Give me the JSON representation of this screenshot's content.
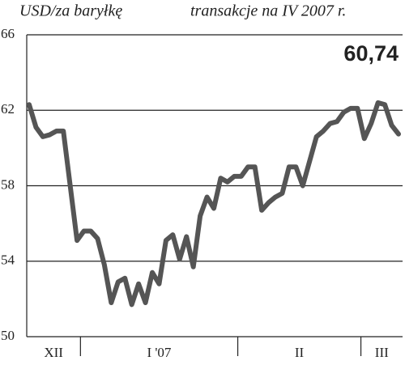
{
  "chart_data": {
    "type": "line",
    "title": "USD/za baryłkę",
    "subtitle": "transakcje na IV 2007 r.",
    "annotation": "60,74",
    "color": "#555555",
    "ylim": [
      50,
      66
    ],
    "yticks": [
      50,
      54,
      58,
      62,
      66
    ],
    "grid": true,
    "months": [
      {
        "label": "XII",
        "values": [
          62.3,
          61.1,
          60.6,
          60.7,
          60.9,
          60.9,
          58.0,
          55.1
        ]
      },
      {
        "label": "I '07",
        "values": [
          55.6,
          55.6,
          55.2,
          53.8,
          51.8,
          52.9,
          53.1,
          51.7,
          52.8,
          51.8,
          53.4,
          52.8,
          55.1,
          55.4,
          54.1,
          55.3,
          53.7,
          56.4,
          57.4,
          56.8,
          58.4,
          58.2,
          58.5
        ]
      },
      {
        "label": "II",
        "values": [
          58.5,
          59.0,
          59.0,
          56.7,
          57.1,
          57.4,
          57.6,
          59.0,
          59.0,
          58.0,
          59.3,
          60.6,
          60.9,
          61.3,
          61.4,
          61.9,
          62.1,
          62.1
        ]
      },
      {
        "label": "III",
        "values": [
          60.5,
          61.3,
          62.4,
          62.3,
          61.2,
          60.74
        ]
      }
    ]
  }
}
